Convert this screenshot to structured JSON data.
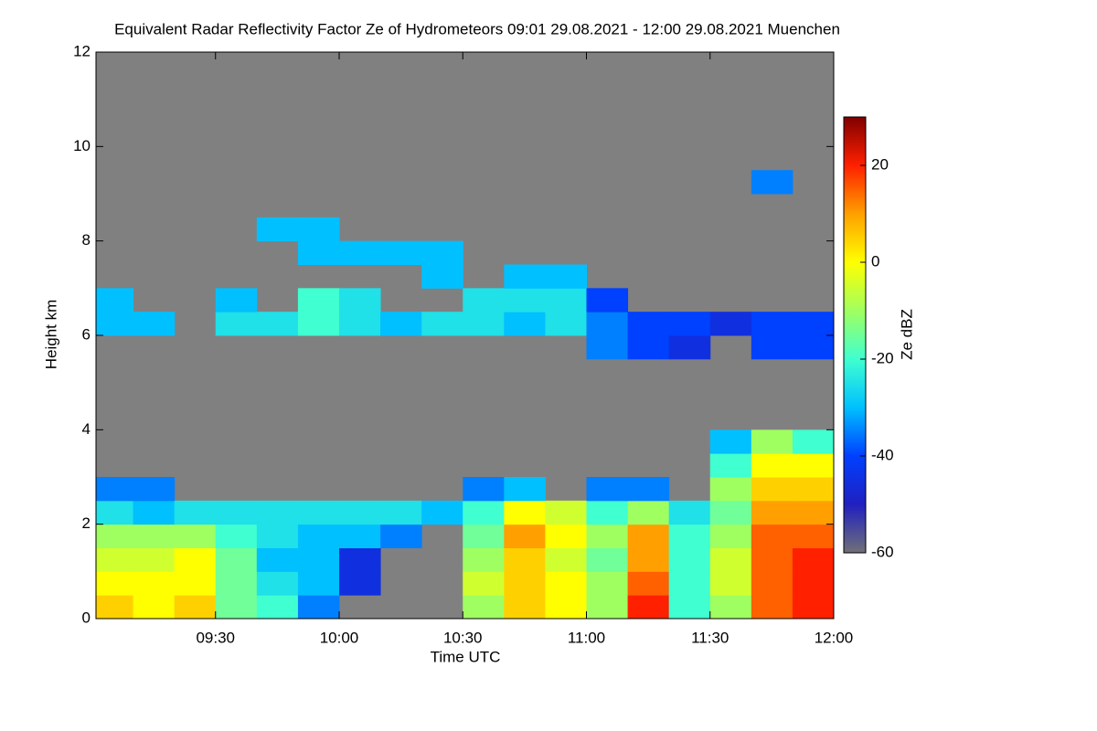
{
  "chart_data": {
    "type": "heatmap",
    "title": "Equivalent Radar Reflectivity Factor Ze of Hydrometeors   09:01 29.08.2021 - 12:00 29.08.2021 Muenchen",
    "x_label": "Time UTC",
    "y_label": "Height km",
    "colorbar_label": "Ze dBZ",
    "x": [
      "09:01",
      "09:10",
      "09:20",
      "09:30",
      "09:40",
      "09:50",
      "10:00",
      "10:10",
      "10:20",
      "10:30",
      "10:40",
      "10:50",
      "11:00",
      "11:10",
      "11:20",
      "11:30",
      "11:40",
      "11:50",
      "12:00"
    ],
    "y": [
      0,
      0.5,
      1,
      1.5,
      2,
      2.5,
      3,
      3.5,
      4,
      4.5,
      5,
      5.5,
      6,
      6.5,
      7,
      7.5,
      8,
      8.5,
      9,
      9.5
    ],
    "z": [
      [
        5,
        0,
        5,
        -15,
        -20,
        -35,
        null,
        null,
        null,
        -10,
        5,
        0,
        -10,
        20,
        -20,
        -10,
        15,
        20
      ],
      [
        0,
        0,
        0,
        -15,
        -25,
        -30,
        -45,
        null,
        null,
        -5,
        5,
        0,
        -10,
        15,
        -20,
        -5,
        15,
        20
      ],
      [
        -5,
        -5,
        0,
        -15,
        -30,
        -30,
        -45,
        null,
        null,
        -10,
        5,
        -5,
        -15,
        10,
        -20,
        -5,
        15,
        20
      ],
      [
        -10,
        -10,
        -10,
        -20,
        -25,
        -30,
        -30,
        -35,
        null,
        -15,
        10,
        0,
        -10,
        10,
        -20,
        -10,
        15,
        15
      ],
      [
        -25,
        -30,
        -25,
        -25,
        -25,
        -25,
        -25,
        -25,
        -30,
        -20,
        0,
        -5,
        -20,
        -10,
        -25,
        -15,
        10,
        10
      ],
      [
        -35,
        -35,
        null,
        null,
        null,
        null,
        null,
        null,
        null,
        -35,
        -30,
        null,
        -35,
        -35,
        null,
        -10,
        5,
        5
      ],
      [
        null,
        null,
        null,
        null,
        null,
        null,
        null,
        null,
        null,
        null,
        null,
        null,
        null,
        null,
        null,
        -20,
        0,
        0
      ],
      [
        null,
        null,
        null,
        null,
        null,
        null,
        null,
        null,
        null,
        null,
        null,
        null,
        null,
        null,
        null,
        -30,
        -10,
        -20
      ],
      [
        null,
        null,
        null,
        null,
        null,
        null,
        null,
        null,
        null,
        null,
        null,
        null,
        null,
        null,
        null,
        null,
        null,
        null
      ],
      [
        null,
        null,
        null,
        null,
        null,
        null,
        null,
        null,
        null,
        null,
        null,
        null,
        null,
        null,
        null,
        null,
        null,
        null
      ],
      [
        null,
        null,
        null,
        null,
        null,
        null,
        null,
        null,
        null,
        null,
        null,
        null,
        null,
        null,
        null,
        null,
        null,
        null
      ],
      [
        null,
        null,
        null,
        null,
        null,
        null,
        null,
        null,
        null,
        null,
        null,
        null,
        -35,
        -40,
        -45,
        null,
        -40,
        -40
      ],
      [
        -30,
        -30,
        null,
        -25,
        -25,
        -20,
        -25,
        -30,
        -25,
        -25,
        -30,
        -25,
        -35,
        -40,
        -40,
        -45,
        -40,
        -40
      ],
      [
        -30,
        null,
        null,
        -30,
        null,
        -20,
        -25,
        null,
        null,
        -25,
        -25,
        -25,
        -40,
        null,
        null,
        null,
        null,
        null
      ],
      [
        null,
        null,
        null,
        null,
        null,
        null,
        null,
        null,
        -30,
        null,
        -30,
        -30,
        null,
        null,
        null,
        null,
        null,
        null
      ],
      [
        null,
        null,
        null,
        null,
        null,
        -30,
        -30,
        -30,
        -30,
        null,
        null,
        null,
        null,
        null,
        null,
        null,
        null,
        null
      ],
      [
        null,
        null,
        null,
        null,
        -30,
        -30,
        null,
        null,
        null,
        null,
        null,
        null,
        null,
        null,
        null,
        null,
        null,
        null
      ],
      [
        null,
        null,
        null,
        null,
        null,
        null,
        null,
        null,
        null,
        null,
        null,
        null,
        null,
        null,
        null,
        null,
        null,
        null
      ],
      [
        null,
        null,
        null,
        null,
        null,
        null,
        null,
        null,
        null,
        null,
        null,
        null,
        null,
        null,
        null,
        null,
        -35,
        null
      ]
    ],
    "xlim": [
      "09:01",
      "12:00"
    ],
    "xticks": [
      "09:30",
      "10:00",
      "10:30",
      "11:00",
      "11:30",
      "12:00"
    ],
    "ylim": [
      0,
      12
    ],
    "yticks": [
      0,
      2,
      4,
      6,
      8,
      10,
      12
    ],
    "zlim": [
      -60,
      30
    ],
    "zticks": [
      -60,
      -40,
      -20,
      0,
      20
    ],
    "colormap": [
      "#707078",
      "#2020c0",
      "#0040ff",
      "#00c0ff",
      "#40ffd0",
      "#a0ff60",
      "#ffff00",
      "#ffa000",
      "#ff2000",
      "#800000"
    ],
    "missing_color": "#808080"
  }
}
